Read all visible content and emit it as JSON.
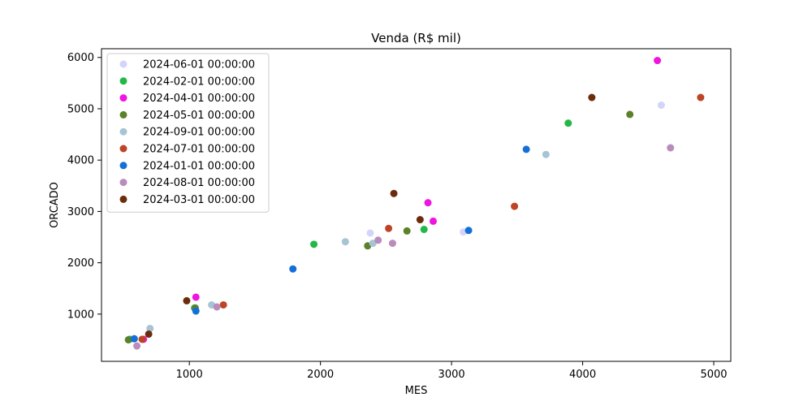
{
  "chart_data": {
    "type": "scatter",
    "title": "Venda (R$ mil)",
    "xlabel": "MES",
    "ylabel": "ORCADO",
    "xlim": [
      330,
      5130
    ],
    "ylim": [
      80,
      6170
    ],
    "xticks": [
      1000,
      2000,
      3000,
      4000,
      5000
    ],
    "yticks": [
      1000,
      2000,
      3000,
      4000,
      5000,
      6000
    ],
    "grid": false,
    "legend_position": "top-left",
    "series": [
      {
        "name": "2024-06-01 00:00:00",
        "color": "#d4d4fa",
        "points": [
          [
            540,
            505
          ],
          [
            2380,
            2580
          ],
          [
            3090,
            2600
          ],
          [
            4600,
            5070
          ]
        ]
      },
      {
        "name": "2024-02-01 00:00:00",
        "color": "#22b845",
        "points": [
          [
            545,
            510
          ],
          [
            1040,
            1120
          ],
          [
            1950,
            2360
          ],
          [
            2790,
            2650
          ],
          [
            3890,
            4720
          ]
        ]
      },
      {
        "name": "2024-04-01 00:00:00",
        "color": "#f014e0",
        "points": [
          [
            650,
            510
          ],
          [
            1050,
            1330
          ],
          [
            2820,
            3170
          ],
          [
            2860,
            2810
          ],
          [
            4570,
            5940
          ]
        ]
      },
      {
        "name": "2024-05-01 00:00:00",
        "color": "#5b822a",
        "points": [
          [
            535,
            500
          ],
          [
            1045,
            1120
          ],
          [
            2360,
            2330
          ],
          [
            2660,
            2620
          ],
          [
            4360,
            4890
          ]
        ]
      },
      {
        "name": "2024-09-01 00:00:00",
        "color": "#a6c4d4",
        "points": [
          [
            700,
            720
          ],
          [
            1170,
            1180
          ],
          [
            2190,
            2410
          ],
          [
            2400,
            2380
          ],
          [
            3720,
            4110
          ]
        ]
      },
      {
        "name": "2024-07-01 00:00:00",
        "color": "#be4426",
        "points": [
          [
            640,
            510
          ],
          [
            1260,
            1180
          ],
          [
            2520,
            2670
          ],
          [
            3480,
            3100
          ],
          [
            4900,
            5220
          ]
        ]
      },
      {
        "name": "2024-01-01 00:00:00",
        "color": "#1470d8",
        "points": [
          [
            580,
            520
          ],
          [
            1050,
            1060
          ],
          [
            1790,
            1880
          ],
          [
            3130,
            2630
          ],
          [
            3570,
            4210
          ]
        ]
      },
      {
        "name": "2024-08-01 00:00:00",
        "color": "#b98cbc",
        "points": [
          [
            600,
            380
          ],
          [
            1210,
            1140
          ],
          [
            2440,
            2440
          ],
          [
            2550,
            2380
          ],
          [
            4670,
            4240
          ]
        ]
      },
      {
        "name": "2024-03-01 00:00:00",
        "color": "#6c2c0c",
        "points": [
          [
            980,
            1260
          ],
          [
            690,
            610
          ],
          [
            2560,
            3350
          ],
          [
            2760,
            2840
          ],
          [
            4070,
            5220
          ]
        ]
      }
    ]
  }
}
